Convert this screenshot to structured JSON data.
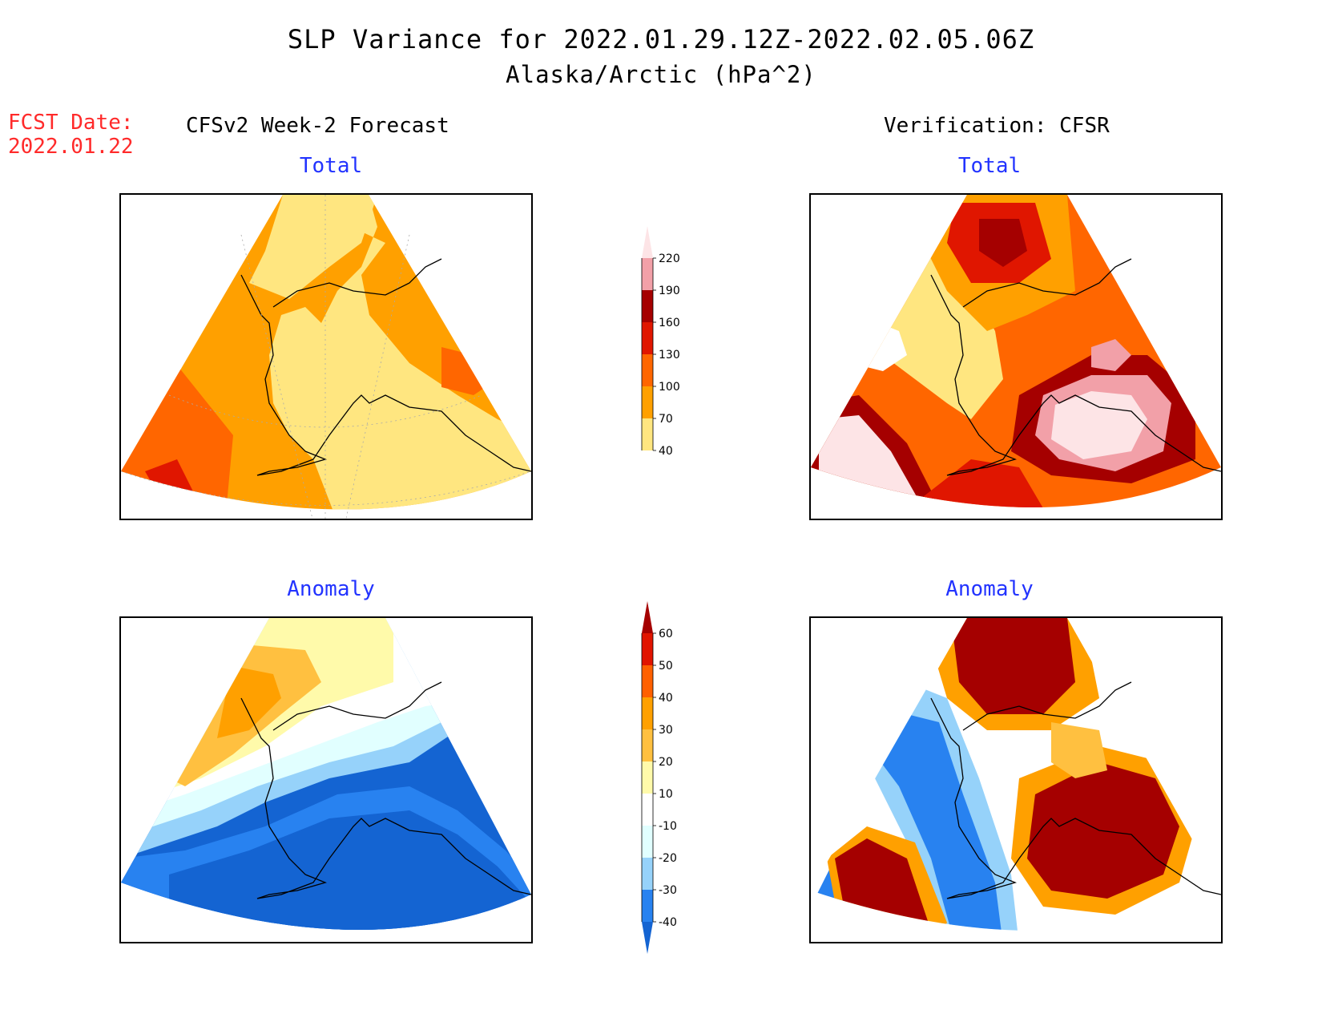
{
  "header": {
    "title": "SLP Variance for 2022.01.29.12Z-2022.02.05.06Z",
    "subtitle": "Alaska/Arctic (hPa^2)"
  },
  "forecast_date": {
    "label": "FCST Date:",
    "value": "2022.01.22"
  },
  "columns": {
    "left": "CFSv2 Week-2 Forecast",
    "right": "Verification: CFSR"
  },
  "panels": {
    "forecast_total": "Total",
    "verification_total": "Total",
    "forecast_anomaly": "Anomaly",
    "verification_anomaly": "Anomaly"
  },
  "chart_data": [
    {
      "type": "heatmap",
      "name": "total-colorbar",
      "levels": [
        40,
        70,
        100,
        130,
        160,
        190,
        220
      ],
      "tick_labels": [
        "220",
        "190",
        "160",
        "130",
        "100",
        "70",
        "40"
      ],
      "colors": [
        "#ffffff",
        "#ffe680",
        "#ffa000",
        "#ff6600",
        "#e01600",
        "#a50000",
        "#f2a0a8",
        "#fde4e6"
      ]
    },
    {
      "type": "heatmap",
      "name": "anomaly-colorbar",
      "levels": [
        -40,
        -30,
        -20,
        -10,
        10,
        20,
        30,
        40,
        50,
        60
      ],
      "tick_labels": [
        "60",
        "50",
        "40",
        "30",
        "20",
        "10",
        "-10",
        "-20",
        "-30",
        "-40"
      ],
      "colors": [
        "#1464d2",
        "#2882f0",
        "#96d2fa",
        "#e1ffff",
        "#ffffff",
        "#fffaaa",
        "#ffc040",
        "#ffa000",
        "#ff6000",
        "#e11400",
        "#a50000"
      ]
    }
  ]
}
